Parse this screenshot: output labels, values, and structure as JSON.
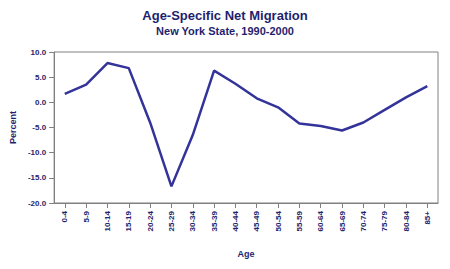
{
  "chart_data": {
    "type": "line",
    "title": "Age-Specific Net Migration",
    "subtitle": "New York State, 1990-2000",
    "x_label": "Age",
    "y_label": "Percent",
    "categories": [
      "0-4",
      "5-9",
      "10-14",
      "15-19",
      "20-24",
      "25-29",
      "30-34",
      "35-39",
      "40-44",
      "45-49",
      "50-54",
      "55-59",
      "60-64",
      "65-69",
      "70-74",
      "75-79",
      "80-84",
      "85+"
    ],
    "values": [
      1.7,
      3.5,
      7.8,
      6.8,
      -4.0,
      -16.7,
      -6.5,
      6.3,
      3.7,
      0.8,
      -1.0,
      -4.2,
      -4.7,
      -5.6,
      -4.0,
      -1.5,
      1.0,
      3.2
    ],
    "color": "#33339a",
    "ylim": [
      -20,
      10
    ],
    "yticks": [
      {
        "value": -20,
        "label": "-20.0"
      },
      {
        "value": -15,
        "label": "-15.0"
      },
      {
        "value": -10,
        "label": "-10.0"
      },
      {
        "value": -5,
        "label": "-5.0"
      },
      {
        "value": 0,
        "label": "0.0"
      },
      {
        "value": 5,
        "label": "5.0"
      },
      {
        "value": 10,
        "label": "10.0"
      }
    ],
    "grid": false
  }
}
